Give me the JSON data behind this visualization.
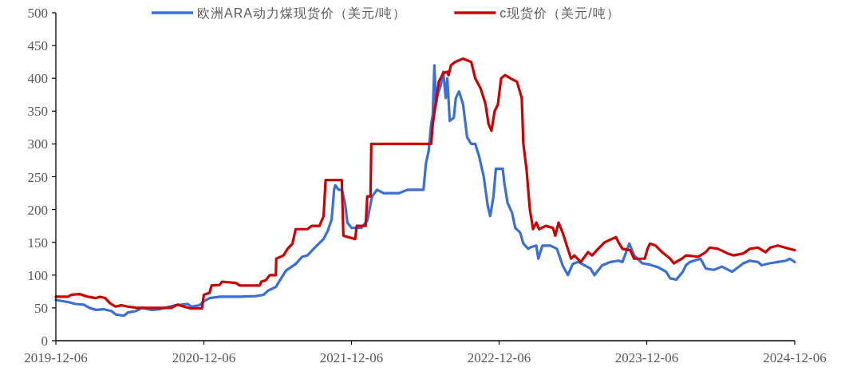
{
  "chart_data": {
    "type": "line",
    "legend": "top",
    "grid": false,
    "xlim": [
      "2019-12-06",
      "2024-12-06"
    ],
    "xticks": [
      "2019-12-06",
      "2020-12-06",
      "2021-12-06",
      "2022-12-06",
      "2023-12-06",
      "2024-12-06"
    ],
    "ylim": [
      0,
      500
    ],
    "yticks": [
      0,
      50,
      100,
      150,
      200,
      250,
      300,
      350,
      400,
      450,
      500
    ],
    "series": [
      {
        "name": "欧洲ARA动力煤现货价（美元/吨）",
        "color": "#3a6fd8",
        "x": [
          "2019-12-06",
          "2020-01-05",
          "2020-01-24",
          "2020-02-13",
          "2020-02-27",
          "2020-03-14",
          "2020-04-02",
          "2020-04-22",
          "2020-05-02",
          "2020-05-22",
          "2020-06-01",
          "2020-06-20",
          "2020-07-06",
          "2020-07-30",
          "2020-08-18",
          "2020-09-07",
          "2020-09-27",
          "2020-10-27",
          "2020-11-05",
          "2020-11-25",
          "2020-12-06",
          "2020-12-20",
          "2021-01-14",
          "2021-03-05",
          "2021-04-13",
          "2021-05-03",
          "2021-05-13",
          "2021-06-02",
          "2021-06-15",
          "2021-06-27",
          "2021-07-21",
          "2021-08-06",
          "2021-08-19",
          "2021-09-08",
          "2021-09-28",
          "2021-10-08",
          "2021-10-18",
          "2021-10-24",
          "2021-10-27",
          "2021-11-04",
          "2021-11-12",
          "2021-11-20",
          "2021-11-26",
          "2021-12-06",
          "2021-12-30",
          "2022-01-14",
          "2022-01-26",
          "2022-02-07",
          "2022-02-23",
          "2022-04-03",
          "2022-04-23",
          "2022-06-02",
          "2022-06-08",
          "2022-06-15",
          "2022-06-21",
          "2022-06-25",
          "2022-06-29",
          "2022-07-03",
          "2022-07-07",
          "2022-07-15",
          "2022-07-21",
          "2022-07-27",
          "2022-07-31",
          "2022-08-06",
          "2022-08-16",
          "2022-08-21",
          "2022-08-29",
          "2022-09-08",
          "2022-09-18",
          "2022-09-28",
          "2022-10-08",
          "2022-10-18",
          "2022-10-29",
          "2022-11-08",
          "2022-11-14",
          "2022-11-22",
          "2022-11-28",
          "2022-12-15",
          "2022-12-19",
          "2022-12-27",
          "2023-01-07",
          "2023-01-15",
          "2023-01-27",
          "2023-02-04",
          "2023-02-16",
          "2023-02-24",
          "2023-03-08",
          "2023-03-13",
          "2023-03-23",
          "2023-04-12",
          "2023-04-28",
          "2023-05-12",
          "2023-05-25",
          "2023-06-06",
          "2023-06-20",
          "2023-07-20",
          "2023-07-30",
          "2023-08-18",
          "2023-09-07",
          "2023-09-27",
          "2023-10-07",
          "2023-10-16",
          "2023-10-24",
          "2023-11-05",
          "2023-11-25",
          "2023-12-14",
          "2024-01-03",
          "2024-01-23",
          "2024-02-02",
          "2024-02-17",
          "2024-03-04",
          "2024-03-12",
          "2024-03-22",
          "2024-04-01",
          "2024-04-17",
          "2024-04-30",
          "2024-05-20",
          "2024-06-09",
          "2024-07-04",
          "2024-08-01",
          "2024-08-17",
          "2024-09-06",
          "2024-09-15",
          "2024-10-05",
          "2024-10-25",
          "2024-11-14",
          "2024-11-24",
          "2024-12-06"
        ],
        "values": [
          62,
          59,
          56,
          55,
          50,
          47,
          48,
          45,
          40,
          38,
          43,
          45,
          50,
          47,
          48,
          51,
          54,
          56,
          52,
          54,
          60,
          65,
          67,
          67,
          68,
          70,
          76,
          82,
          95,
          107,
          117,
          128,
          130,
          143,
          155,
          167,
          185,
          230,
          237,
          230,
          230,
          210,
          180,
          172,
          172,
          183,
          220,
          230,
          225,
          225,
          230,
          230,
          270,
          290,
          330,
          345,
          420,
          360,
          375,
          390,
          410,
          370,
          400,
          335,
          340,
          370,
          380,
          360,
          310,
          300,
          300,
          280,
          250,
          205,
          190,
          220,
          262,
          262,
          240,
          210,
          195,
          172,
          165,
          148,
          140,
          143,
          145,
          125,
          145,
          145,
          140,
          115,
          100,
          117,
          120,
          110,
          100,
          115,
          120,
          122,
          120,
          135,
          148,
          130,
          118,
          116,
          112,
          105,
          95,
          93,
          105,
          115,
          120,
          122,
          125,
          110,
          108,
          113,
          105,
          118,
          122,
          120,
          115,
          118,
          120,
          122,
          125,
          120
        ]
      },
      {
        "name": "c现货价（美元/吨）",
        "color": "#cc0000",
        "x": [
          "2019-12-06",
          "2020-01-05",
          "2020-01-14",
          "2020-02-03",
          "2020-02-23",
          "2020-03-14",
          "2020-03-24",
          "2020-04-06",
          "2020-04-18",
          "2020-05-02",
          "2020-05-16",
          "2020-06-01",
          "2020-06-24",
          "2020-08-28",
          "2020-09-17",
          "2020-10-01",
          "2020-10-17",
          "2020-11-05",
          "2020-12-01",
          "2020-12-06",
          "2020-12-20",
          "2020-12-25",
          "2021-01-14",
          "2021-01-20",
          "2021-02-23",
          "2021-03-05",
          "2021-04-23",
          "2021-04-27",
          "2021-05-08",
          "2021-05-18",
          "2021-06-02",
          "2021-06-03",
          "2021-06-21",
          "2021-07-01",
          "2021-07-13",
          "2021-07-21",
          "2021-08-19",
          "2021-08-29",
          "2021-09-18",
          "2021-09-28",
          "2021-10-03",
          "2021-11-12",
          "2021-11-16",
          "2021-12-15",
          "2021-12-19",
          "2022-01-10",
          "2022-01-14",
          "2022-01-22",
          "2022-01-24",
          "2022-06-21",
          "2022-06-25",
          "2022-07-03",
          "2022-07-10",
          "2022-07-21",
          "2022-07-31",
          "2022-08-03",
          "2022-08-09",
          "2022-08-19",
          "2022-09-08",
          "2022-09-28",
          "2022-10-08",
          "2022-10-21",
          "2022-11-02",
          "2022-11-10",
          "2022-11-17",
          "2022-11-25",
          "2022-12-03",
          "2022-12-11",
          "2022-12-21",
          "2023-01-03",
          "2023-01-19",
          "2023-01-31",
          "2023-02-04",
          "2023-02-12",
          "2023-02-20",
          "2023-02-28",
          "2023-03-08",
          "2023-03-15",
          "2023-03-31",
          "2023-04-18",
          "2023-04-24",
          "2023-05-02",
          "2023-05-12",
          "2023-05-25",
          "2023-06-02",
          "2023-06-10",
          "2023-06-26",
          "2023-07-14",
          "2023-07-24",
          "2023-08-08",
          "2023-08-24",
          "2023-09-21",
          "2023-09-27",
          "2023-10-07",
          "2023-10-26",
          "2023-11-05",
          "2023-12-01",
          "2023-12-08",
          "2023-12-14",
          "2023-12-28",
          "2024-01-13",
          "2024-02-02",
          "2024-02-11",
          "2024-03-02",
          "2024-03-12",
          "2024-04-11",
          "2024-04-30",
          "2024-05-10",
          "2024-05-30",
          "2024-06-23",
          "2024-07-08",
          "2024-08-01",
          "2024-08-17",
          "2024-09-06",
          "2024-09-25",
          "2024-10-07",
          "2024-10-25",
          "2024-11-24",
          "2024-12-06"
        ],
        "values": [
          67,
          67,
          70,
          71,
          67,
          65,
          67,
          65,
          57,
          52,
          54,
          52,
          50,
          50,
          50,
          55,
          52,
          49,
          49,
          70,
          73,
          84,
          85,
          90,
          88,
          84,
          84,
          90,
          92,
          100,
          100,
          125,
          130,
          140,
          148,
          170,
          170,
          175,
          175,
          190,
          245,
          245,
          160,
          155,
          175,
          175,
          220,
          220,
          300,
          300,
          330,
          365,
          395,
          408,
          410,
          405,
          420,
          425,
          430,
          425,
          400,
          385,
          362,
          330,
          320,
          350,
          360,
          400,
          405,
          400,
          395,
          370,
          300,
          260,
          200,
          170,
          180,
          170,
          175,
          172,
          160,
          180,
          165,
          140,
          125,
          130,
          120,
          135,
          130,
          140,
          150,
          158,
          150,
          140,
          138,
          125,
          125,
          140,
          148,
          145,
          135,
          125,
          118,
          125,
          130,
          128,
          135,
          142,
          140,
          133,
          130,
          133,
          140,
          142,
          135,
          142,
          145,
          140,
          138
        ]
      }
    ]
  }
}
